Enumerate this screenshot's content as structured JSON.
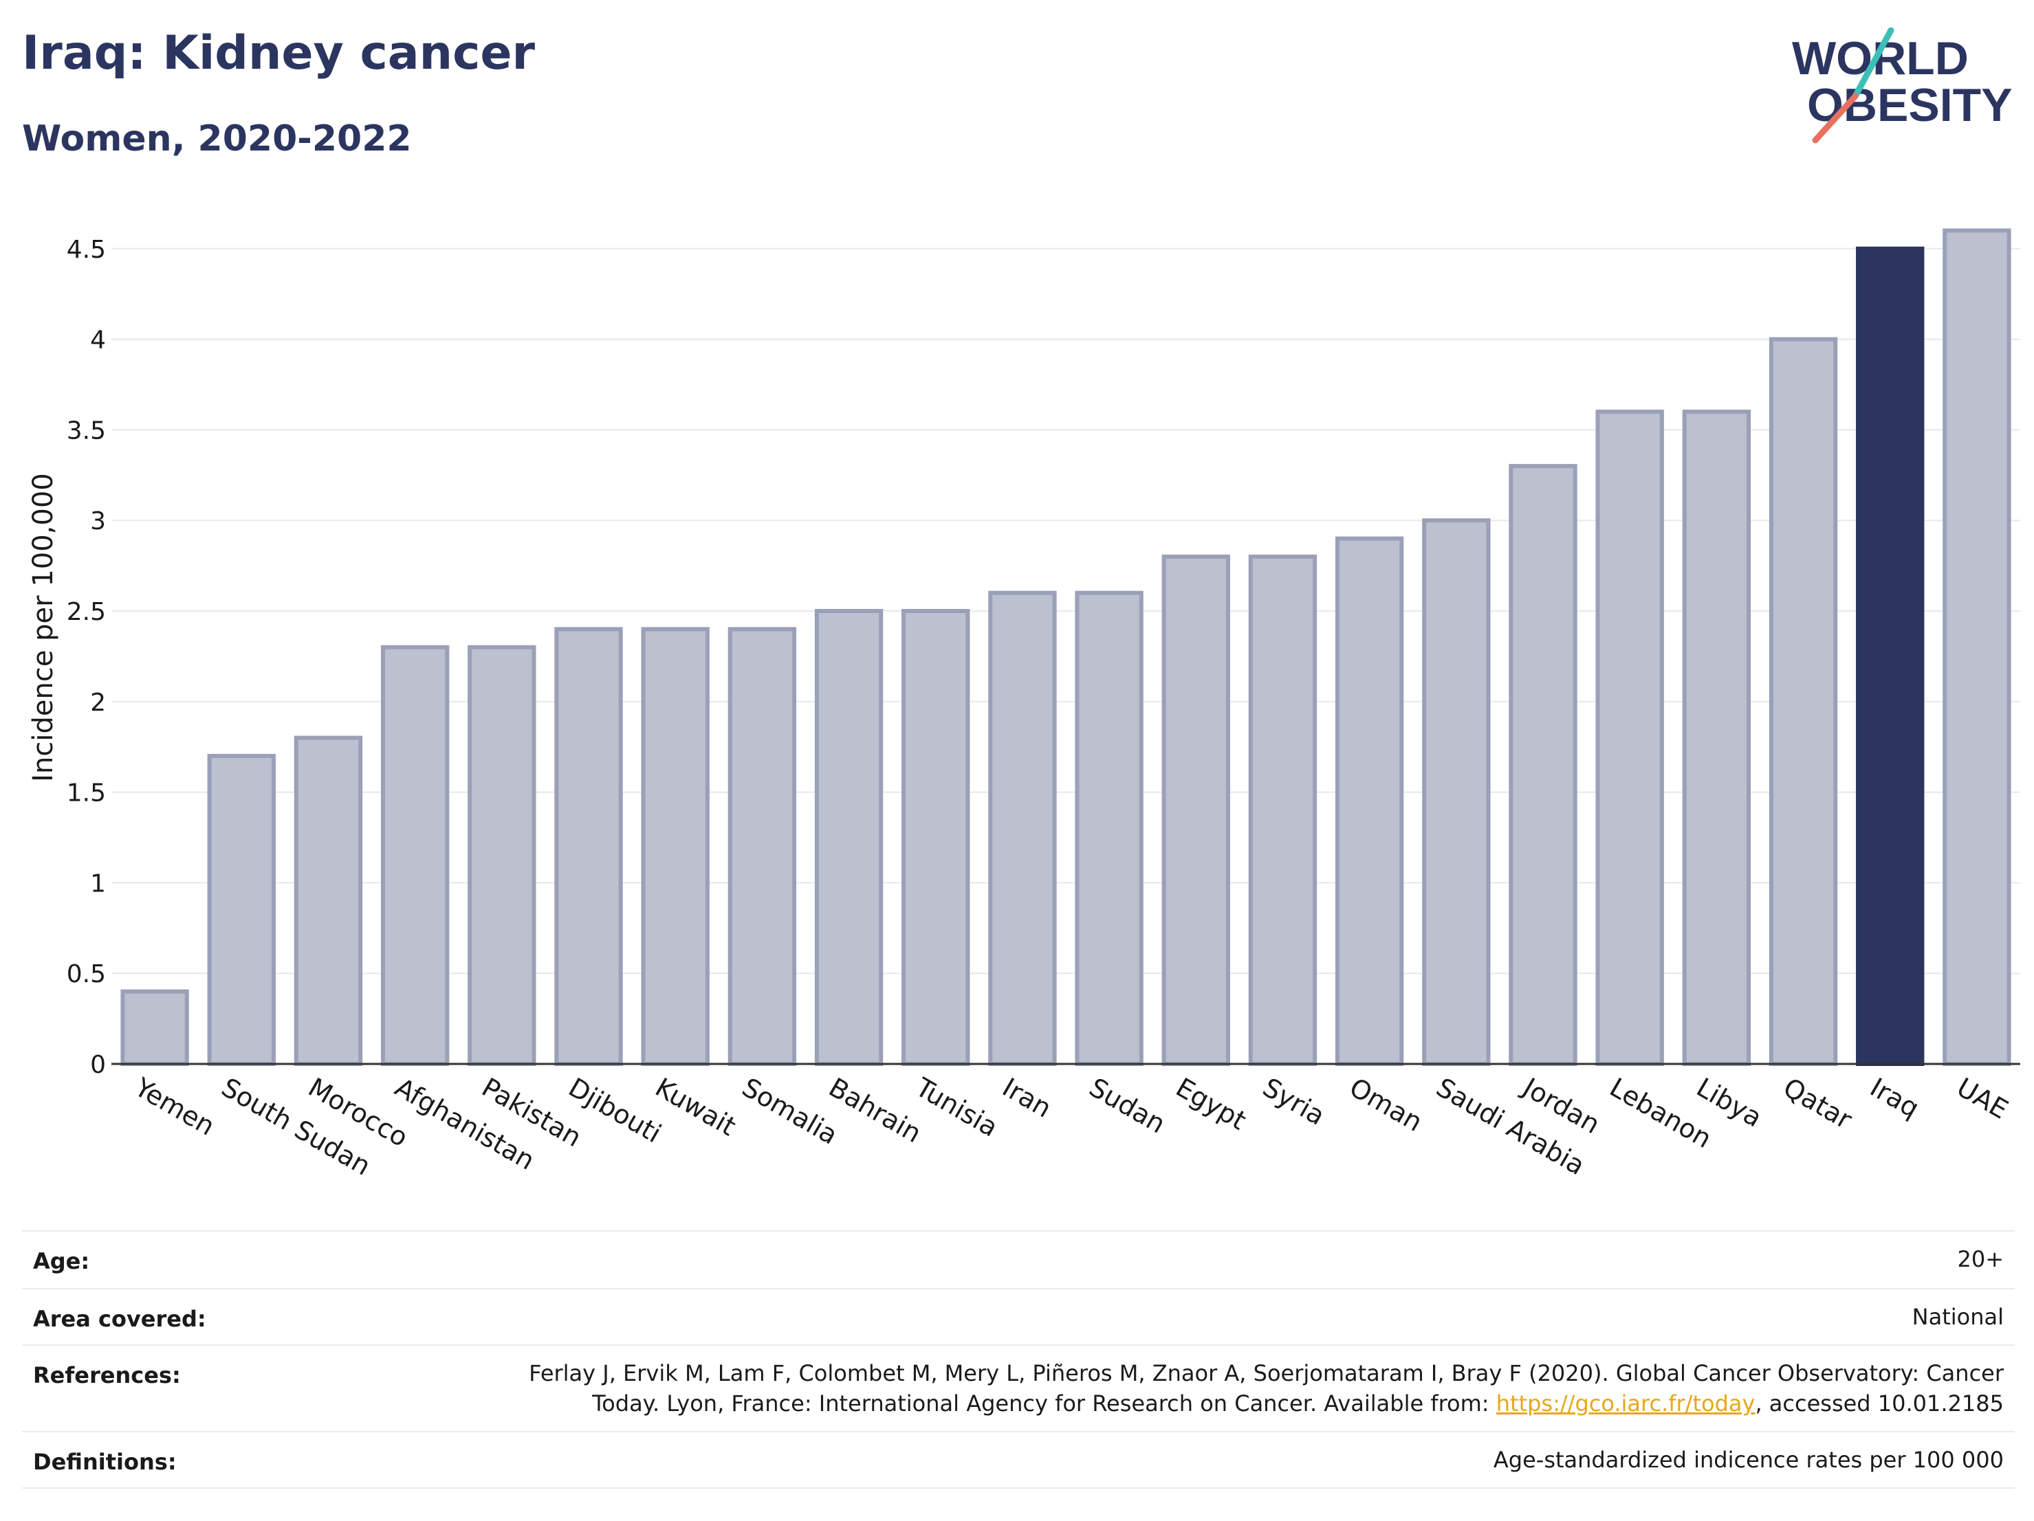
{
  "header": {
    "title": "Iraq: Kidney cancer",
    "subtitle": "Women, 2020-2022"
  },
  "logo": {
    "line1": "WORLD",
    "line2": "OBESITY"
  },
  "colors": {
    "highlight": "#2b3560",
    "bar_fill": "#bcc0cf",
    "bar_stroke": "#9aa0b8",
    "logo_teal": "#3dbfb8",
    "logo_coral": "#e8705f",
    "link": "#e6a817"
  },
  "chart_data": {
    "type": "bar",
    "title": "",
    "xlabel": "",
    "ylabel": "Incidence per 100,000",
    "ylim": [
      0,
      4.75
    ],
    "yticks": [
      "0",
      "0.5",
      "1",
      "1.5",
      "2",
      "2.5",
      "3",
      "3.5",
      "4",
      "4.5"
    ],
    "grid": true,
    "highlight_category": "Iraq",
    "categories": [
      "Yemen",
      "South Sudan",
      "Morocco",
      "Afghanistan",
      "Pakistan",
      "Djibouti",
      "Kuwait",
      "Somalia",
      "Bahrain",
      "Tunisia",
      "Iran",
      "Sudan",
      "Egypt",
      "Syria",
      "Oman",
      "Saudi Arabia",
      "Jordan",
      "Lebanon",
      "Libya",
      "Qatar",
      "Iraq",
      "UAE"
    ],
    "values": [
      0.4,
      1.7,
      1.8,
      2.3,
      2.3,
      2.4,
      2.4,
      2.4,
      2.5,
      2.5,
      2.6,
      2.6,
      2.8,
      2.8,
      2.9,
      3.0,
      3.3,
      3.6,
      3.6,
      4.0,
      4.5,
      4.6
    ]
  },
  "info": {
    "age": {
      "label": "Age:",
      "value": "20+"
    },
    "area": {
      "label": "Area covered:",
      "value": "National"
    },
    "references": {
      "label": "References:",
      "text_before": "Ferlay J, Ervik M, Lam F, Colombet M, Mery L, Piñeros M, Znaor A, Soerjomataram I, Bray F (2020). Global Cancer Observatory: Cancer Today. Lyon, France: International Agency for Research on Cancer. Available from: ",
      "link": "https://gco.iarc.fr/today",
      "text_after": ", accessed 10.01.2185"
    },
    "definitions": {
      "label": "Definitions:",
      "value": "Age-standardized indicence rates per 100 000"
    }
  }
}
